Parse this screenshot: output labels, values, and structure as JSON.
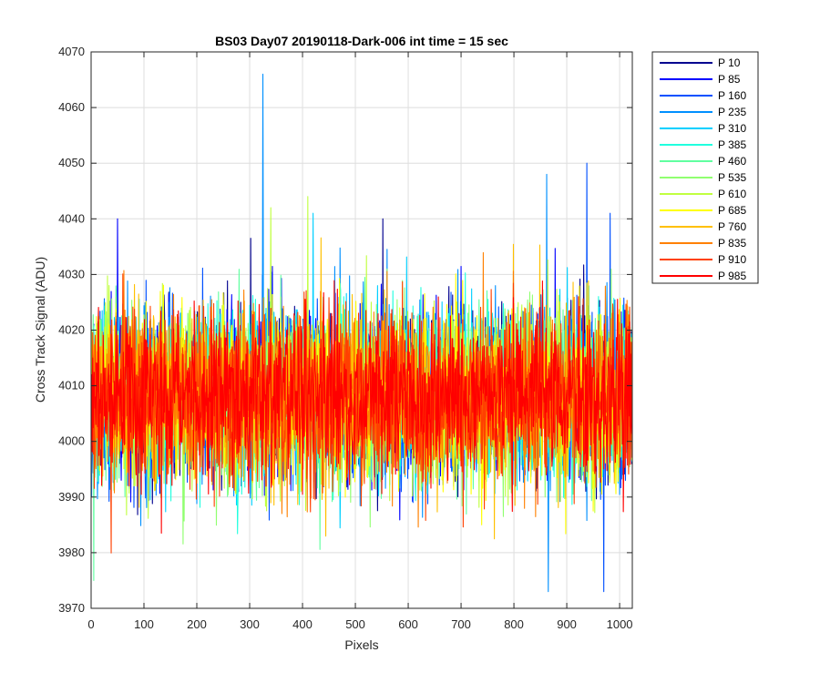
{
  "chart_data": {
    "type": "line",
    "title": "BS03 Day07 20190118-Dark-006 int time = 15 sec",
    "xlabel": "Pixels",
    "ylabel": "Cross Track Signal (ADU)",
    "xlim": [
      0,
      1024
    ],
    "ylim": [
      3970,
      4070
    ],
    "xticks": [
      0,
      100,
      200,
      300,
      400,
      500,
      600,
      700,
      800,
      900,
      1000
    ],
    "yticks": [
      3970,
      3980,
      3990,
      4000,
      4010,
      4020,
      4030,
      4040,
      4050,
      4060,
      4070
    ],
    "grid": true,
    "legend_position": "outside-top-right",
    "n_points_per_series": 1024,
    "noise_mean_approx": 4008,
    "series": [
      {
        "name": "P 10",
        "color": "#00008f"
      },
      {
        "name": "P 85",
        "color": "#0000ff"
      },
      {
        "name": "P 160",
        "color": "#0050ff"
      },
      {
        "name": "P 235",
        "color": "#0090ff"
      },
      {
        "name": "P 310",
        "color": "#00d0ff"
      },
      {
        "name": "P 385",
        "color": "#20ffdf"
      },
      {
        "name": "P 460",
        "color": "#60ffa0"
      },
      {
        "name": "P 535",
        "color": "#90ff70"
      },
      {
        "name": "P 610",
        "color": "#c0ff40"
      },
      {
        "name": "P 685",
        "color": "#ffff00"
      },
      {
        "name": "P 760",
        "color": "#ffc000"
      },
      {
        "name": "P 835",
        "color": "#ff8000"
      },
      {
        "name": "P 910",
        "color": "#ff4000"
      },
      {
        "name": "P 985",
        "color": "#ff0000"
      }
    ],
    "annotations_spikes": [
      {
        "series": "P 235",
        "x": 325,
        "y": 4066
      },
      {
        "series": "P 160",
        "x": 938,
        "y": 4050
      },
      {
        "series": "P 235",
        "x": 862,
        "y": 4048
      },
      {
        "series": "P 610",
        "x": 410,
        "y": 4044
      },
      {
        "series": "P 610",
        "x": 340,
        "y": 4042
      },
      {
        "series": "P 160",
        "x": 982,
        "y": 4041
      },
      {
        "series": "P 310",
        "x": 420,
        "y": 4041
      },
      {
        "series": "P 85",
        "x": 50,
        "y": 4040
      },
      {
        "series": "P 10",
        "x": 552,
        "y": 4040
      },
      {
        "series": "P 160",
        "x": 970,
        "y": 3973
      },
      {
        "series": "P 235",
        "x": 865,
        "y": 3973
      },
      {
        "series": "P 460",
        "x": 5,
        "y": 3975
      }
    ]
  }
}
